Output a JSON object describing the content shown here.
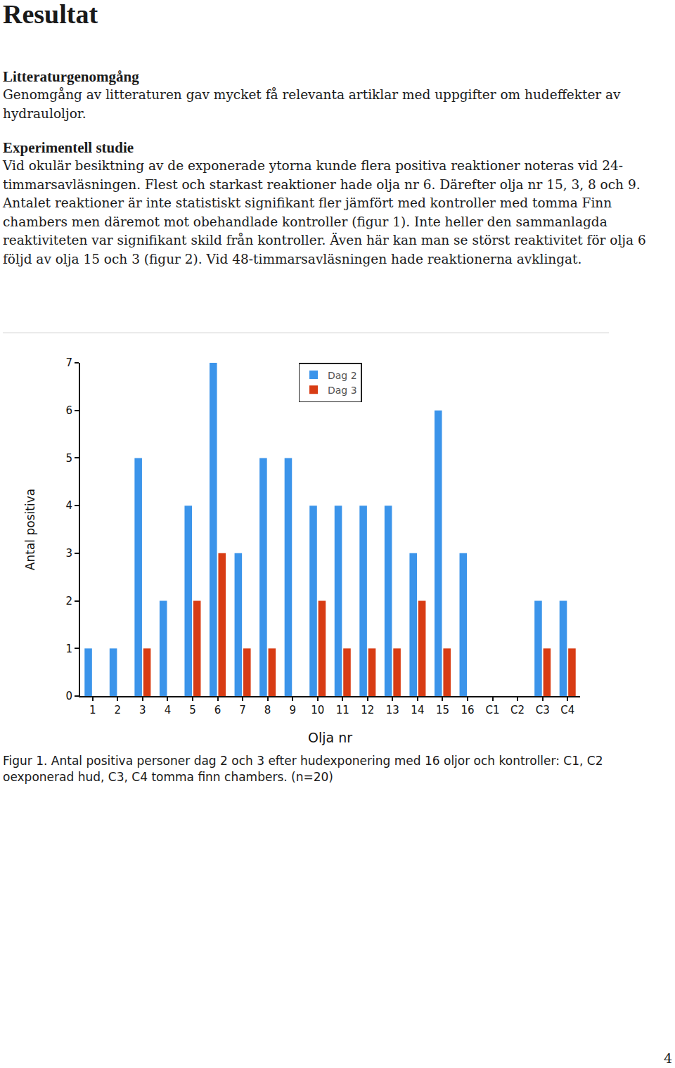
{
  "document": {
    "heading": "Resultat",
    "sections": [
      {
        "heading": "Litteraturgenomgång",
        "paragraphs": [
          "Genomgång av litteraturen gav mycket få relevanta artiklar med uppgifter om hudeffekter av hydrauloljor."
        ]
      },
      {
        "heading": "Experimentell studie",
        "paragraphs": [
          "Vid okulär besiktning av de exponerade ytorna kunde flera positiva reaktioner noteras vid 24-timmarsavläsningen. Flest och starkast reaktioner hade olja nr 6. Därefter olja nr 15, 3, 8 och 9. Antalet reaktioner är inte statistiskt signifikant fler jämfört med kontroller med tomma Finn chambers men däremot mot obehandlade kontroller (figur 1). Inte heller den sammanlagda reaktiviteten var signifikant skild från kontroller. Även här kan man se störst reaktivitet för olja 6 följd av olja 15 och 3 (figur 2). Vid 48-timmarsavläsningen hade reaktionerna avklingat."
        ]
      }
    ],
    "caption": "Figur 1. Antal positiva personer dag 2 och 3 efter hudexponering med 16 oljor och kontroller: C1, C2 oexponerad hud, C3, C4 tomma finn chambers. (n=20)",
    "page_number": "4"
  },
  "chart_data": {
    "type": "bar",
    "x_label": "Olja nr",
    "y_label": "Antal positiva",
    "categories": [
      "1",
      "2",
      "3",
      "4",
      "5",
      "6",
      "7",
      "8",
      "9",
      "10",
      "11",
      "12",
      "13",
      "14",
      "15",
      "16",
      "C1",
      "C2",
      "C3",
      "C4"
    ],
    "series": [
      {
        "name": "Dag 2",
        "color": "#3b94ea",
        "values": [
          1,
          1,
          5,
          2,
          4,
          7,
          3,
          5,
          5,
          4,
          4,
          4,
          4,
          3,
          6,
          3,
          0,
          0,
          2,
          2
        ]
      },
      {
        "name": "Dag 3",
        "color": "#d83c14",
        "values": [
          0,
          0,
          1,
          0,
          2,
          3,
          1,
          1,
          0,
          2,
          1,
          1,
          1,
          2,
          1,
          0,
          0,
          0,
          1,
          1
        ]
      }
    ],
    "ylim": [
      0,
      7
    ],
    "yticks": [
      0,
      1,
      2,
      3,
      4,
      5,
      6,
      7
    ],
    "grid": false,
    "legend": "top"
  }
}
